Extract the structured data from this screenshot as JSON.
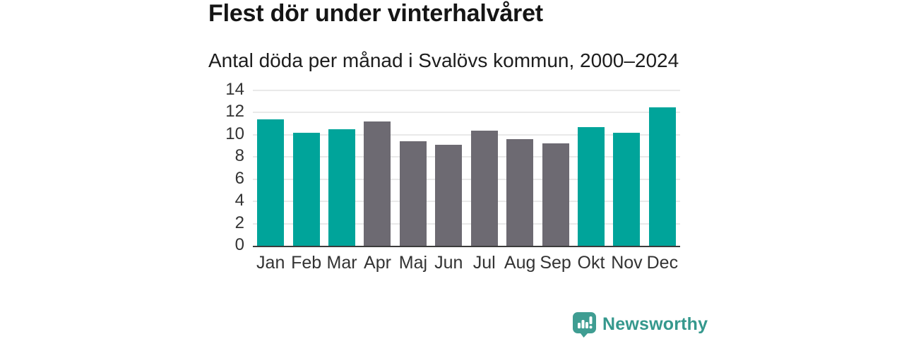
{
  "header": {
    "title": "Flest dör under vinterhalvåret",
    "subtitle": "Antal döda per månad i Svalövs kommun, 2000–2024"
  },
  "chart_data": {
    "type": "bar",
    "title": "Flest dör under vinterhalvåret",
    "subtitle": "Antal döda per månad i Svalövs kommun, 2000–2024",
    "categories": [
      "Jan",
      "Feb",
      "Mar",
      "Apr",
      "Maj",
      "Jun",
      "Jul",
      "Aug",
      "Sep",
      "Okt",
      "Nov",
      "Dec"
    ],
    "values": [
      11.4,
      10.2,
      10.5,
      11.2,
      9.4,
      9.1,
      10.4,
      9.6,
      9.2,
      10.7,
      10.2,
      12.5
    ],
    "seasons": [
      "winter",
      "winter",
      "winter",
      "summer",
      "summer",
      "summer",
      "summer",
      "summer",
      "summer",
      "winter",
      "winter",
      "winter"
    ],
    "colors": {
      "winter": "#00a49a",
      "summer": "#6d6a72"
    },
    "xlabel": "",
    "ylabel": "",
    "ylim": [
      0,
      14
    ],
    "yticks": [
      0,
      2,
      4,
      6,
      8,
      10,
      12,
      14
    ],
    "grid": true,
    "legend_position": "none"
  },
  "footer": {
    "brand": "Newsworthy",
    "brand_color": "#35988d",
    "logo_icon": "bar-chart-speech-bubble-icon"
  }
}
